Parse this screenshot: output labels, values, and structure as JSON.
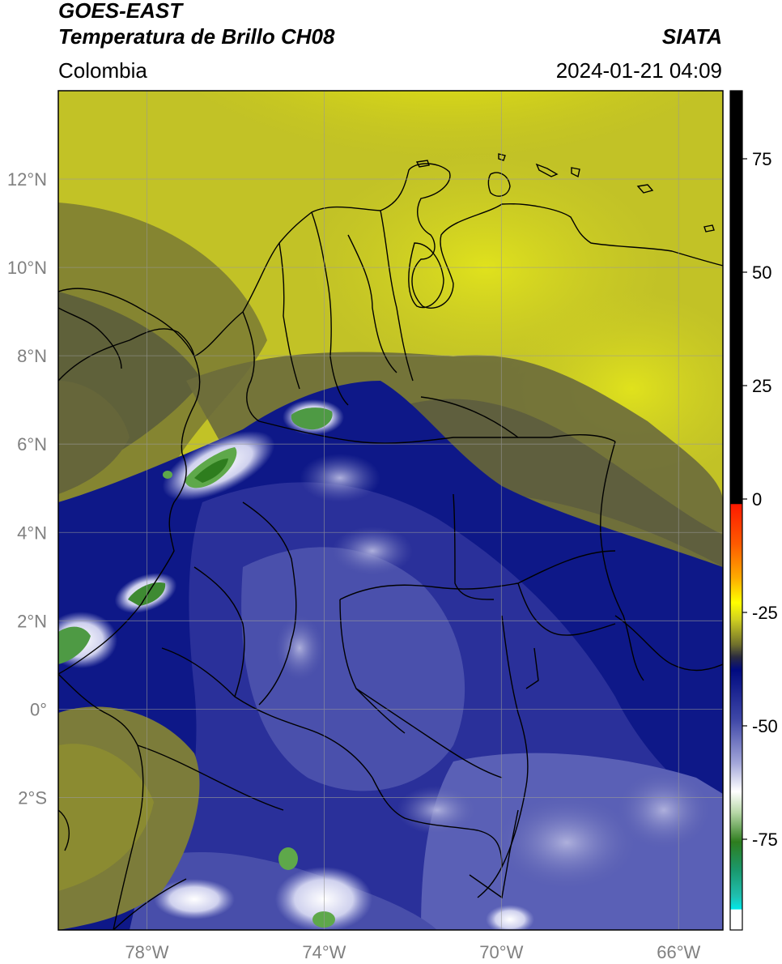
{
  "header": {
    "satellite": "GOES-EAST",
    "product": "Temperatura de Brillo CH08",
    "region": "Colombia",
    "brand": "SIATA",
    "datetime": "2024-01-21 04:09"
  },
  "map": {
    "lon_range": [
      -80,
      -65
    ],
    "lat_range": [
      -5,
      14
    ],
    "lon_ticks": [
      {
        "value": -78,
        "label": "78°W"
      },
      {
        "value": -74,
        "label": "74°W"
      },
      {
        "value": -70,
        "label": "70°W"
      },
      {
        "value": -66,
        "label": "66°W"
      }
    ],
    "lat_ticks": [
      {
        "value": 12,
        "label": "12°N"
      },
      {
        "value": 10,
        "label": "10°N"
      },
      {
        "value": 8,
        "label": "8°N"
      },
      {
        "value": 6,
        "label": "6°N"
      },
      {
        "value": 4,
        "label": "4°N"
      },
      {
        "value": 2,
        "label": "2°N"
      },
      {
        "value": 0,
        "label": "0°"
      },
      {
        "value": -2,
        "label": "2°S"
      }
    ],
    "grid": true
  },
  "colorbar": {
    "range": [
      -95,
      90
    ],
    "ticks": [
      {
        "value": 75,
        "label": "75"
      },
      {
        "value": 50,
        "label": "50"
      },
      {
        "value": 25,
        "label": "25"
      },
      {
        "value": 0,
        "label": "0"
      },
      {
        "value": -25,
        "label": "-25"
      },
      {
        "value": -50,
        "label": "-50"
      },
      {
        "value": -75,
        "label": "-75"
      }
    ],
    "colors": {
      "black": "#000000",
      "red": "#ff2a00",
      "orange": "#ff9900",
      "yellow": "#ffff00",
      "olive": "#6b6b2a",
      "navy": "#0a1480",
      "lavender": "#a8aad8",
      "white": "#ffffff",
      "green": "#2e7d1e",
      "teal": "#1ca88a",
      "cyan": "#00e5e5"
    }
  }
}
